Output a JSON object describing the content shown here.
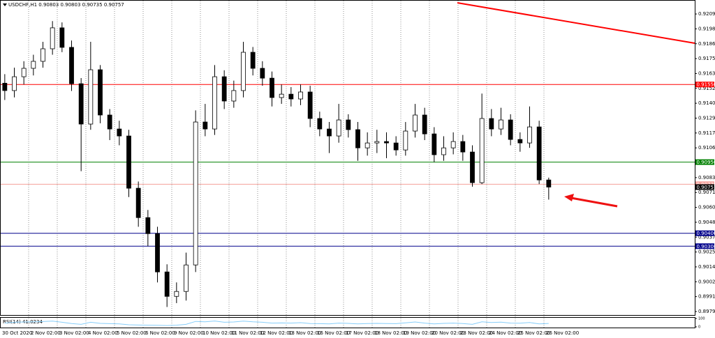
{
  "chart_data": {
    "type": "candlestick",
    "title": "USDCHF,H1 0.90803 0.90803 0.90735 0.90757",
    "categories": [
      "30 Oct 2020",
      "2 Nov 02:00",
      "3 Nov 02:00",
      "4 Nov 02:00",
      "5 Nov 02:00",
      "6 Nov 02:00",
      "9 Nov 02:00",
      "10 Nov 02:00",
      "11 Nov 02:00",
      "12 Nov 02:00",
      "13 Nov 02:00",
      "16 Nov 02:00",
      "17 Nov 02:00",
      "18 Nov 02:00",
      "19 Nov 02:00",
      "20 Nov 02:00",
      "23 Nov 02:00",
      "24 Nov 02:00",
      "25 Nov 02:00",
      "26 Nov 02:00"
    ],
    "open": [
      0.9156,
      0.91503,
      0.9161,
      0.91675,
      0.91729,
      0.91826,
      0.91988,
      0.91837,
      0.91556,
      0.91244,
      0.91664,
      0.91314,
      0.91206,
      0.91152,
      0.90748,
      0.90521,
      0.90397,
      0.90101,
      0.89912,
      0.8995,
      0.90155,
      0.9126,
      0.91206,
      0.9161,
      0.91422,
      0.91503,
      0.91799,
      0.91675,
      0.91599,
      0.91449,
      0.91475,
      0.91438,
      0.91492,
      0.91287,
      0.91206,
      0.91152,
      0.91276,
      0.91201,
      0.9106,
      0.91098,
      0.91109,
      0.91098,
      0.91044,
      0.9119,
      0.91314,
      0.91168,
      0.91007,
      0.9106,
      0.91109,
      0.91028,
      0.90791,
      0.91287,
      0.91206,
      0.91276,
      0.91125,
      0.91098,
      0.91222,
      0.90812
    ],
    "high": [
      0.9163,
      0.9168,
      0.9173,
      0.9178,
      0.9188,
      0.9204,
      0.9203,
      0.9189,
      0.916,
      0.9188,
      0.917,
      0.9136,
      0.9127,
      0.912,
      0.908,
      0.9058,
      0.9045,
      0.9016,
      0.9002,
      0.9025,
      0.9135,
      0.914,
      0.917,
      0.9166,
      0.9158,
      0.9188,
      0.9184,
      0.9173,
      0.9165,
      0.9155,
      0.9153,
      0.9155,
      0.9154,
      0.9134,
      0.9126,
      0.914,
      0.9132,
      0.9126,
      0.9118,
      0.912,
      0.9118,
      0.9115,
      0.9126,
      0.914,
      0.9137,
      0.9122,
      0.9115,
      0.9118,
      0.9116,
      0.9108,
      0.9148,
      0.9136,
      0.9137,
      0.9132,
      0.9118,
      0.9138,
      0.9127,
      0.9083
    ],
    "low": [
      0.9143,
      0.9145,
      0.9155,
      0.9162,
      0.9168,
      0.9178,
      0.918,
      0.915,
      0.9088,
      0.912,
      0.9125,
      0.9112,
      0.9108,
      0.9068,
      0.9045,
      0.903,
      0.9002,
      0.8983,
      0.8986,
      0.8988,
      0.901,
      0.9115,
      0.9116,
      0.9136,
      0.9137,
      0.9145,
      0.9162,
      0.9154,
      0.9138,
      0.914,
      0.9138,
      0.9139,
      0.9122,
      0.9115,
      0.9102,
      0.911,
      0.9114,
      0.9096,
      0.91,
      0.9102,
      0.9098,
      0.91,
      0.91,
      0.9114,
      0.9112,
      0.9095,
      0.9096,
      0.9101,
      0.9096,
      0.9076,
      0.9078,
      0.9115,
      0.9116,
      0.9108,
      0.9103,
      0.9106,
      0.9078,
      0.9066
    ],
    "close": [
      0.91503,
      0.9161,
      0.91675,
      0.91729,
      0.91826,
      0.91988,
      0.91837,
      0.91556,
      0.91244,
      0.91664,
      0.91314,
      0.91206,
      0.91152,
      0.90748,
      0.90521,
      0.90397,
      0.90101,
      0.89912,
      0.8995,
      0.90155,
      0.9126,
      0.91206,
      0.9161,
      0.91422,
      0.91503,
      0.91799,
      0.91675,
      0.91599,
      0.91449,
      0.91475,
      0.91438,
      0.91492,
      0.91287,
      0.91206,
      0.91152,
      0.91276,
      0.91201,
      0.9106,
      0.91098,
      0.91109,
      0.91098,
      0.91044,
      0.9119,
      0.91314,
      0.91168,
      0.91007,
      0.9106,
      0.91109,
      0.91028,
      0.90791,
      0.91287,
      0.91206,
      0.91276,
      0.91125,
      0.91098,
      0.91222,
      0.90812,
      0.90757
    ],
    "ylim": [
      0.89768,
      0.9216
    ],
    "yticks": [
      0.92095,
      {
        "value": 0.9198,
        "label": "0.91980"
      },
      0.91865,
      {
        "value": 0.9175,
        "label": "0.91750"
      },
      0.91635,
      {
        "value": 0.9152,
        "label": "0.91520"
      },
      0.91405,
      {
        "value": 0.9129,
        "label": "0.91290"
      },
      0.91175,
      {
        "value": 0.9106,
        "label": "0.91060"
      },
      {
        "value": 0.9083,
        "label": "0.90830"
      },
      0.90715,
      {
        "value": 0.906,
        "label": "0.90600"
      },
      0.90485,
      {
        "value": 0.9037,
        "label": "0.90370"
      },
      0.90255,
      {
        "value": 0.9014,
        "label": "0.90140"
      },
      0.90025,
      {
        "value": 0.8991,
        "label": "0.89910"
      },
      0.89795
    ],
    "levels": [
      {
        "value": 0.9155,
        "label": "0.91550",
        "color": "#ff0000"
      },
      {
        "value": 0.9095,
        "label": "0.90950",
        "color": "#008000"
      },
      {
        "value": 0.90779,
        "label": "0.90779",
        "color": "#f4a09a"
      },
      {
        "value": 0.90757,
        "label": "0.90757",
        "color": "#000000"
      },
      {
        "value": 0.904,
        "label": "0.90400",
        "color": "#00008b"
      },
      {
        "value": 0.903,
        "label": "0.90300",
        "color": "#00008b"
      }
    ],
    "rsi": {
      "label": "RSI(14) 41.0234",
      "ylim": [
        0,
        100
      ],
      "yticks": [
        100,
        0
      ],
      "color": "#87cefa",
      "values": [
        45,
        55,
        58,
        60,
        63,
        68,
        55,
        40,
        30,
        55,
        42,
        38,
        35,
        25,
        22,
        20,
        18,
        16,
        20,
        30,
        65,
        60,
        70,
        55,
        58,
        68,
        60,
        55,
        45,
        47,
        45,
        50,
        40,
        38,
        36,
        45,
        42,
        35,
        40,
        42,
        40,
        38,
        48,
        58,
        45,
        35,
        42,
        45,
        40,
        30,
        60,
        52,
        56,
        45,
        44,
        52,
        35,
        41.0234
      ]
    }
  }
}
